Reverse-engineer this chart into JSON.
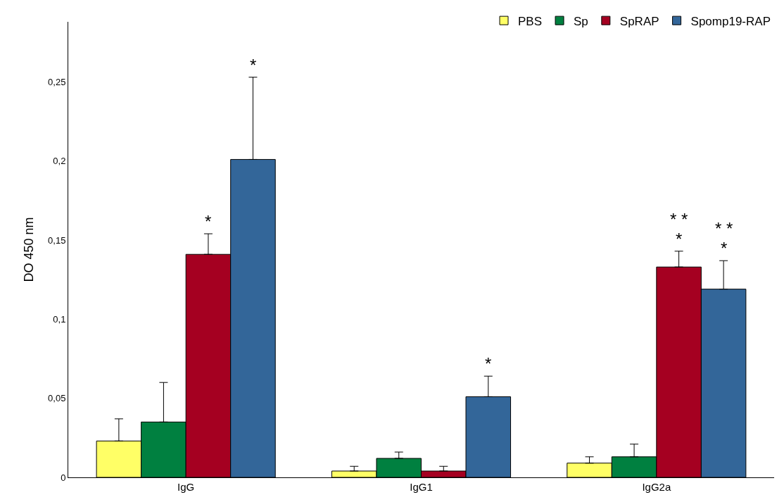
{
  "chart_data": {
    "type": "bar",
    "ylabel": "DO 450 nm",
    "categories": [
      "IgG",
      "IgG1",
      "IgG2a"
    ],
    "series": [
      {
        "name": "PBS",
        "color": "#ffff66",
        "values": [
          0.023,
          0.004,
          0.009
        ],
        "errors": [
          [
            0.023,
            0.037
          ],
          [
            0.004,
            0.007
          ],
          [
            0.009,
            0.013
          ]
        ]
      },
      {
        "name": "Sp",
        "color": "#008040",
        "values": [
          0.035,
          0.012,
          0.013
        ],
        "errors": [
          [
            0.035,
            0.06
          ],
          [
            0.012,
            0.016
          ],
          [
            0.013,
            0.021
          ]
        ]
      },
      {
        "name": "SpRAP",
        "color": "#a50021",
        "values": [
          0.141,
          0.004,
          0.133
        ],
        "errors": [
          [
            0.141,
            0.154
          ],
          [
            0.004,
            0.007
          ],
          [
            0.133,
            0.143
          ]
        ]
      },
      {
        "name": "Spomp19-RAP",
        "color": "#336699",
        "values": [
          0.201,
          0.051,
          0.119
        ],
        "errors": [
          [
            0.201,
            0.253
          ],
          [
            0.051,
            0.064
          ],
          [
            0.119,
            0.137
          ]
        ]
      }
    ],
    "ylim": [
      0,
      0.288
    ],
    "yticks": [
      0,
      {
        "value": 0.05,
        "label": "0,05"
      },
      {
        "value": 0.1,
        "label": "0,1"
      },
      {
        "value": 0.15,
        "label": "0,15"
      },
      {
        "value": 0.2,
        "label": "0,2"
      },
      {
        "value": 0.25,
        "label": "0,25"
      }
    ],
    "annotations": [
      "*",
      "*",
      "*",
      "*",
      "* *",
      "*",
      "* *"
    ],
    "legend": "top right"
  }
}
